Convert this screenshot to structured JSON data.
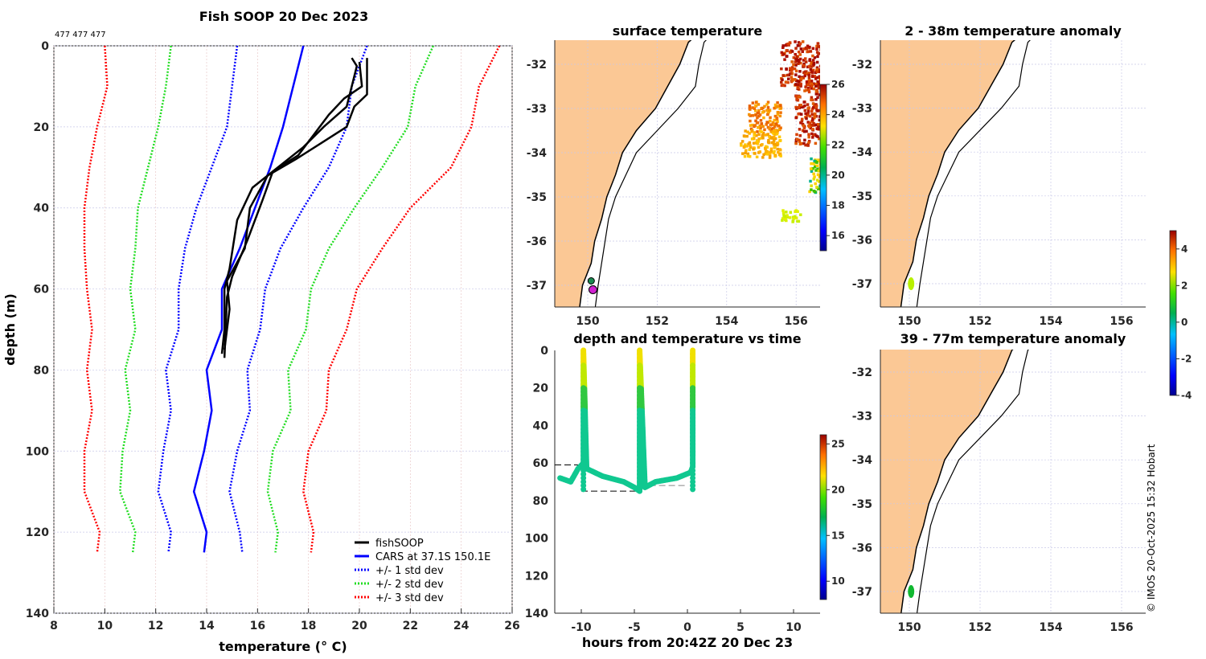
{
  "figure_title": "Fish SOOP 20 Dec 2023",
  "cast_ids": "477 477 477",
  "copyright": "© IMOS 20-Oct-2025 15:32 Hobart",
  "colors": {
    "land": "#fbc895",
    "fish": "#000000",
    "cars": "#0000ff",
    "std1": "#0000ff",
    "std2": "#00dd00",
    "std3": "#ff0000"
  },
  "chart_data": [
    {
      "type": "line",
      "title": "Fish SOOP 20 Dec 2023",
      "xlabel": "temperature (° C)",
      "ylabel": "depth (m)",
      "xlim": [
        8,
        26
      ],
      "ylim": [
        140,
        0
      ],
      "xticks": [
        "8",
        "10",
        "12",
        "14",
        "16",
        "18",
        "20",
        "22",
        "24",
        "26"
      ],
      "yticks": [
        "0",
        "20",
        "40",
        "60",
        "80",
        "100",
        "120",
        "140"
      ],
      "grid": true,
      "legend_position": "bottom-right",
      "depth": [
        0,
        10,
        20,
        30,
        40,
        50,
        60,
        70,
        80,
        90,
        100,
        110,
        120,
        125
      ],
      "series": [
        {
          "name": "CARS at 37.1S 150.1E",
          "style": "solid",
          "color": "#0000ff",
          "temp": [
            17.8,
            17.4,
            17.0,
            16.5,
            15.9,
            15.3,
            14.6,
            14.6,
            14.0,
            14.2,
            13.9,
            13.5,
            14.0,
            13.9
          ]
        },
        {
          "name": "+/- 1 std dev",
          "style": "dotted",
          "color": "#0000ff",
          "temp": [
            15.2,
            15.0,
            14.8,
            14.2,
            13.6,
            13.15,
            12.9,
            12.9,
            12.4,
            12.6,
            12.3,
            12.1,
            12.6,
            12.5
          ]
        },
        {
          "name": "+/- 1 std dev (upper)",
          "legend": false,
          "style": "dotted",
          "color": "#0000ff",
          "temp": [
            20.3,
            19.7,
            19.5,
            18.8,
            17.8,
            16.9,
            16.3,
            16.1,
            15.6,
            15.7,
            15.2,
            14.9,
            15.3,
            15.4
          ]
        },
        {
          "name": "+/- 2 std dev",
          "style": "dotted",
          "color": "#22dd22",
          "temp": [
            12.6,
            12.4,
            12.1,
            11.7,
            11.3,
            11.2,
            11.0,
            11.2,
            10.8,
            11.0,
            10.7,
            10.6,
            11.2,
            11.1
          ]
        },
        {
          "name": "+/- 2 std dev (upper)",
          "legend": false,
          "style": "dotted",
          "color": "#22dd22",
          "temp": [
            22.9,
            22.2,
            21.9,
            20.9,
            19.8,
            18.8,
            18.1,
            17.9,
            17.2,
            17.3,
            16.6,
            16.4,
            16.8,
            16.7
          ]
        },
        {
          "name": "+/- 3 std dev",
          "style": "dotted",
          "color": "#ff0000",
          "temp": [
            10.0,
            10.1,
            9.7,
            9.4,
            9.2,
            9.2,
            9.3,
            9.5,
            9.3,
            9.5,
            9.2,
            9.2,
            9.8,
            9.7
          ]
        },
        {
          "name": "+/- 3 std dev (upper)",
          "legend": false,
          "style": "dotted",
          "color": "#ff0000",
          "temp": [
            25.5,
            24.7,
            24.4,
            23.6,
            22.0,
            20.9,
            19.9,
            19.5,
            18.8,
            18.7,
            18.0,
            17.8,
            18.2,
            18.1
          ]
        }
      ],
      "fish_casts": [
        {
          "depth": [
            3,
            5,
            10,
            15,
            20,
            25,
            30,
            35,
            43,
            55,
            60,
            70,
            76
          ],
          "temp": [
            19.7,
            19.9,
            19.7,
            19.5,
            18.6,
            17.8,
            16.8,
            15.8,
            15.2,
            14.9,
            14.7,
            14.7,
            14.6
          ]
        },
        {
          "depth": [
            3,
            12,
            15,
            20,
            24,
            28,
            32,
            40,
            50,
            58,
            65,
            75
          ],
          "temp": [
            20.3,
            20.3,
            19.8,
            19.5,
            18.5,
            17.5,
            16.4,
            15.7,
            15.5,
            14.8,
            14.9,
            14.7
          ]
        },
        {
          "depth": [
            4,
            10,
            13,
            17,
            22,
            27,
            31,
            38,
            48,
            57,
            62,
            77
          ],
          "temp": [
            20.0,
            20.1,
            19.4,
            18.8,
            18.2,
            17.6,
            16.6,
            16.2,
            15.6,
            15.0,
            14.8,
            14.7
          ]
        }
      ],
      "legend": [
        "fishSOOP",
        "CARS at 37.1S 150.1E",
        "+/- 1 std dev",
        "+/- 2 std dev",
        "+/- 3 std dev"
      ]
    },
    {
      "type": "heatmap",
      "title": "surface temperature",
      "xticks": [
        "150",
        "152",
        "154",
        "156"
      ],
      "yticks": [
        "-32",
        "-33",
        "-34",
        "-35",
        "-36",
        "-37"
      ],
      "colorbar": {
        "range": [
          15,
          26
        ],
        "ticks": [
          "16",
          "18",
          "20",
          "22",
          "24",
          "26"
        ]
      }
    },
    {
      "type": "scatter",
      "title": "depth and temperature vs time",
      "xlabel": "hours from 20:42Z 20 Dec 23",
      "xlim": [
        -12.5,
        12.5
      ],
      "ylim": [
        140,
        0
      ],
      "xticks": [
        "-10",
        "-5",
        "0",
        "5",
        "10"
      ],
      "yticks": [
        "0",
        "20",
        "40",
        "60",
        "80",
        "100",
        "120",
        "140"
      ],
      "hours": [
        -12,
        -11,
        -10.3,
        -9.8,
        -9.8,
        -9.8,
        -9.8,
        -9.5,
        -8,
        -6,
        -5,
        -4.5,
        -4.5,
        -4.5,
        -4.5,
        -4,
        -3,
        -1,
        0.3,
        0.5,
        0.5,
        0.5
      ],
      "depth_m": [
        68,
        70,
        63,
        60,
        30,
        10,
        0,
        63,
        67,
        70,
        73,
        75,
        30,
        10,
        0,
        73,
        70,
        68,
        65,
        62,
        30,
        0
      ],
      "colorbar": {
        "range": [
          8,
          26
        ],
        "ticks": [
          "10",
          "15",
          "20",
          "25"
        ]
      }
    },
    {
      "type": "heatmap",
      "title": "2 - 38m temperature anomaly",
      "xticks": [
        "150",
        "152",
        "154",
        "156"
      ],
      "yticks": [
        "-32",
        "-33",
        "-34",
        "-35",
        "-36",
        "-37"
      ],
      "colorbar": {
        "range": [
          -4,
          5
        ],
        "ticks": [
          "4",
          "2",
          "0",
          "-2",
          "-4"
        ]
      }
    },
    {
      "type": "heatmap",
      "title": "39 - 77m temperature anomaly",
      "xticks": [
        "150",
        "152",
        "154",
        "156"
      ],
      "yticks": [
        "-32",
        "-33",
        "-34",
        "-35",
        "-36",
        "-37"
      ]
    }
  ]
}
